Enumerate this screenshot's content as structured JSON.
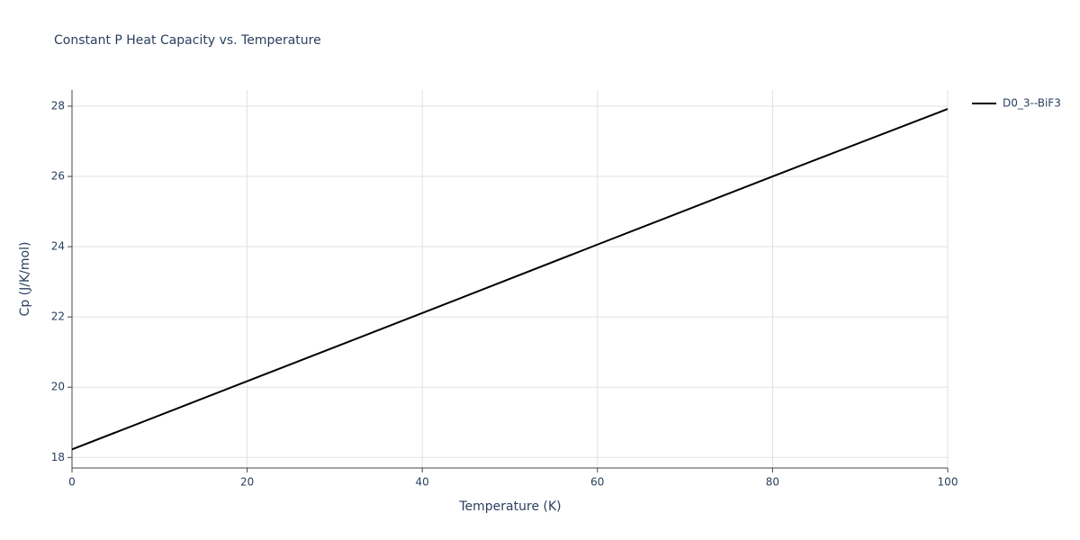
{
  "chart_data": {
    "type": "line",
    "title": "Constant P Heat Capacity vs. Temperature",
    "x_label": "Temperature (K)",
    "y_label": "Cp (J/K/mol)",
    "x": [
      0,
      20,
      40,
      60,
      80,
      100
    ],
    "series": [
      {
        "name": "D0_3--BiF3",
        "color": "#000000",
        "values": [
          18.23,
          20.17,
          22.11,
          24.06,
          26.0,
          27.92
        ]
      }
    ],
    "xlim": [
      0,
      100
    ],
    "xticks": [
      0,
      20,
      40,
      60,
      80,
      100
    ],
    "ylim": [
      17.7,
      28.46
    ],
    "yticks": [
      18,
      20,
      22,
      24,
      26,
      28
    ],
    "grid": true,
    "legend": "right"
  }
}
